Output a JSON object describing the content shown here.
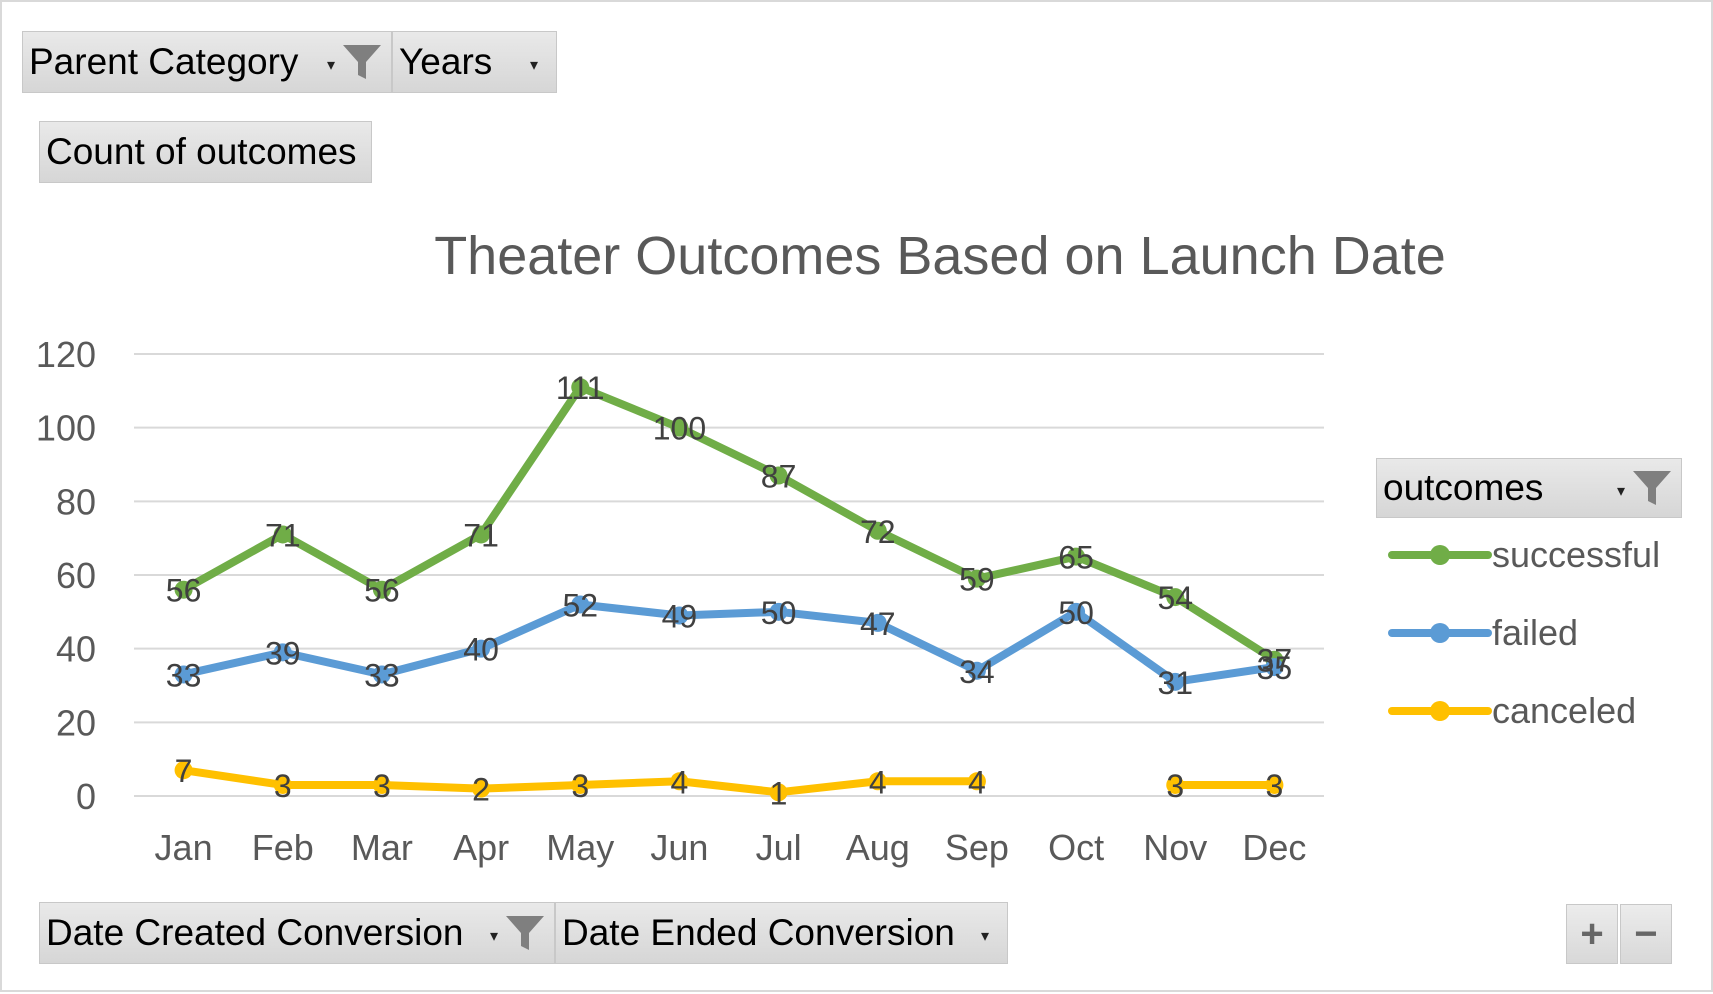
{
  "filters": {
    "parent_category": "Parent Category",
    "years": "Years",
    "date_created": "Date Created Conversion",
    "date_ended": "Date Ended Conversion"
  },
  "value_field": "Count of outcomes",
  "legend": {
    "title": "outcomes"
  },
  "zoom": {
    "plus": "+",
    "minus": "−"
  },
  "colors": {
    "successful": "#70ad47",
    "failed": "#5b9bd5",
    "canceled": "#ffc000",
    "grid": "#d9d9d9",
    "axis_text": "#595959",
    "title": "#595959",
    "data_label": "#404040"
  },
  "chart_data": {
    "type": "line",
    "title": "Theater Outcomes Based on Launch Date",
    "xlabel": "",
    "ylabel": "",
    "ylim": [
      0,
      120
    ],
    "yticks": [
      0,
      20,
      40,
      60,
      80,
      100,
      120
    ],
    "grid": true,
    "legend_position": "right",
    "categories": [
      "Jan",
      "Feb",
      "Mar",
      "Apr",
      "May",
      "Jun",
      "Jul",
      "Aug",
      "Sep",
      "Oct",
      "Nov",
      "Dec"
    ],
    "series": [
      {
        "name": "successful",
        "values": [
          56,
          71,
          56,
          71,
          111,
          100,
          87,
          72,
          59,
          65,
          54,
          37
        ]
      },
      {
        "name": "failed",
        "values": [
          33,
          39,
          33,
          40,
          52,
          49,
          50,
          47,
          34,
          50,
          31,
          35
        ]
      },
      {
        "name": "canceled",
        "values": [
          7,
          3,
          3,
          2,
          3,
          4,
          1,
          4,
          4,
          null,
          3,
          3
        ]
      }
    ]
  }
}
